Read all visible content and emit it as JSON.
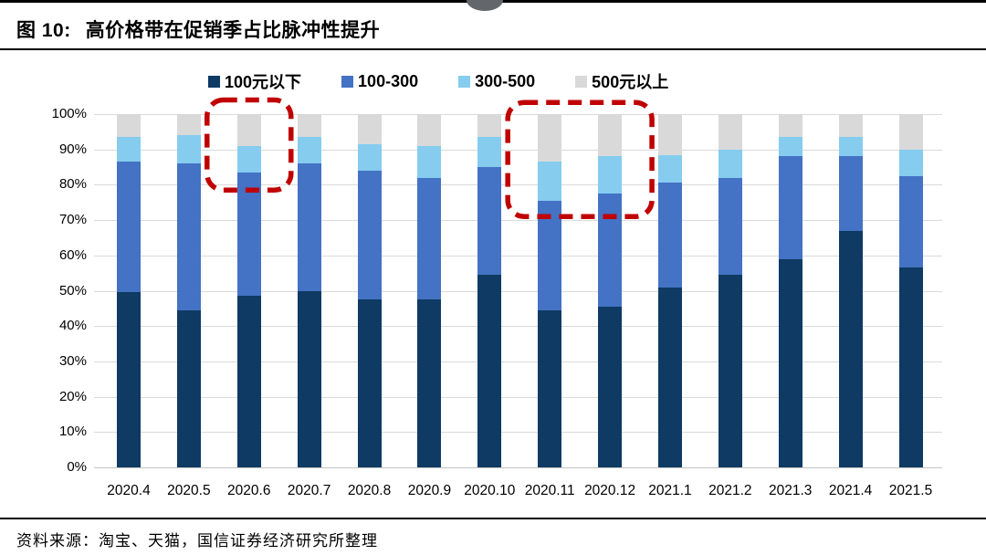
{
  "header": {
    "figure_label": "图 10:",
    "title": "高价格带在促销季占比脉冲性提升"
  },
  "footer": {
    "source": "资料来源：淘宝、天猫，国信证券经济研究所整理"
  },
  "decor": {
    "logo_semicircle_color": "#63666a"
  },
  "chart_data": {
    "type": "bar",
    "stacked": true,
    "unit": "%",
    "title": "高价格带在促销季占比脉冲性提升",
    "xlabel": "",
    "ylabel": "",
    "ylim": [
      0,
      100
    ],
    "grid": true,
    "legend_position": "top",
    "ytick_labels": [
      "0%",
      "10%",
      "20%",
      "30%",
      "40%",
      "50%",
      "60%",
      "70%",
      "80%",
      "90%",
      "100%"
    ],
    "categories": [
      "2020.4",
      "2020.5",
      "2020.6",
      "2020.7",
      "2020.8",
      "2020.9",
      "2020.10",
      "2020.11",
      "2020.12",
      "2021.1",
      "2021.2",
      "2021.3",
      "2021.4",
      "2021.5"
    ],
    "series": [
      {
        "name": "100元以下",
        "color": "#0E3A63",
        "values": [
          49.5,
          44.5,
          48.5,
          50,
          47.5,
          47.5,
          54.5,
          44.5,
          45.5,
          51,
          54.5,
          59,
          67,
          56.5
        ]
      },
      {
        "name": "100-300",
        "color": "#4472C4",
        "values": [
          37,
          41.5,
          35,
          36,
          36.5,
          34.5,
          30.5,
          31,
          32,
          29.5,
          27.5,
          29,
          21,
          26
        ]
      },
      {
        "name": "300-500",
        "color": "#85CCEF",
        "values": [
          7,
          8,
          7.5,
          7.5,
          7.5,
          9,
          8.5,
          11,
          10.5,
          8,
          8,
          5.5,
          5.5,
          7.5
        ]
      },
      {
        "name": "500元以上",
        "color": "#D9D9D9",
        "values": [
          6.5,
          6,
          9,
          6.5,
          8.5,
          9,
          6.5,
          13.5,
          12,
          11.5,
          10,
          6.5,
          6.5,
          10
        ]
      }
    ],
    "annotations": [
      {
        "type": "dashed_box",
        "color": "#C00000",
        "from_category": "2020.6",
        "to_category": "2020.6",
        "top_pct": 104,
        "bottom_pct": 78.5
      },
      {
        "type": "dashed_box",
        "color": "#C00000",
        "from_category": "2020.11",
        "to_category": "2020.12",
        "top_pct": 103.3,
        "bottom_pct": 71
      }
    ]
  }
}
